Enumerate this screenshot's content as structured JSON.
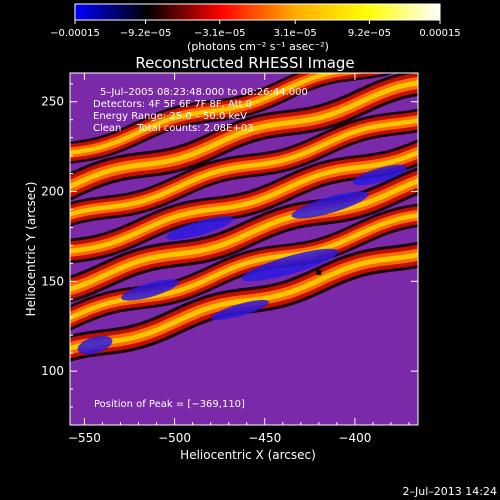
{
  "chart_data": {
    "type": "heatmap",
    "title": "Reconstructed RHESSI Image",
    "xlabel": "Heliocentric X (arcsec)",
    "ylabel": "Heliocentric Y (arcsec)",
    "xlim": [
      -558,
      -365
    ],
    "ylim": [
      70,
      266
    ],
    "xticks": [
      -550,
      -500,
      -450,
      -400
    ],
    "xtick_labels": [
      "−550",
      "−500",
      "−450",
      "−400"
    ],
    "yticks": [
      100,
      150,
      200,
      250
    ],
    "ytick_labels": [
      "100",
      "150",
      "200",
      "250"
    ],
    "colorbar": {
      "ticks": [
        -0.00015,
        -9.2e-05,
        -3.1e-05,
        3.1e-05,
        9.2e-05,
        0.00015
      ],
      "tick_labels": [
        "−0.00015",
        "−9.2e−05",
        "−3.1e−05",
        "3.1e−05",
        "9.2e−05",
        "0.00015"
      ],
      "unit_label": "(photons cm⁻² s⁻¹ asec⁻²)",
      "colormap": [
        "#0000ff",
        "#000000",
        "#ff0000",
        "#ffaa00",
        "#ffff00",
        "#ffffff"
      ]
    },
    "annotations": {
      "time_range": "5–Jul–2005 08:23:48.000 to 08:26:44.000",
      "detectors": "Detectors: 4F 5F 6F 7F 8F, Att 0",
      "energy": "Energy Range: 25.0 – 50.0 keV",
      "clean": "Clean     Total counts: 2.08E+03",
      "peak": "Position of Peak = [−369,110]"
    },
    "peak_position": [
      -369,
      110
    ],
    "stripes": [
      {
        "offset": 186,
        "amplitude": 1.0
      },
      {
        "offset": 218,
        "amplitude": 0.9
      },
      {
        "offset": 251,
        "amplitude": 0.95
      },
      {
        "offset": 285,
        "amplitude": 1.0
      },
      {
        "offset": 318,
        "amplitude": 0.9
      },
      {
        "offset": 352,
        "amplitude": 1.0
      },
      {
        "offset": 152,
        "amplitude": 0.85
      }
    ],
    "source_marker": [
      -420,
      155
    ]
  },
  "footer": {
    "timestamp": "2–Jul–2013 14:24"
  }
}
